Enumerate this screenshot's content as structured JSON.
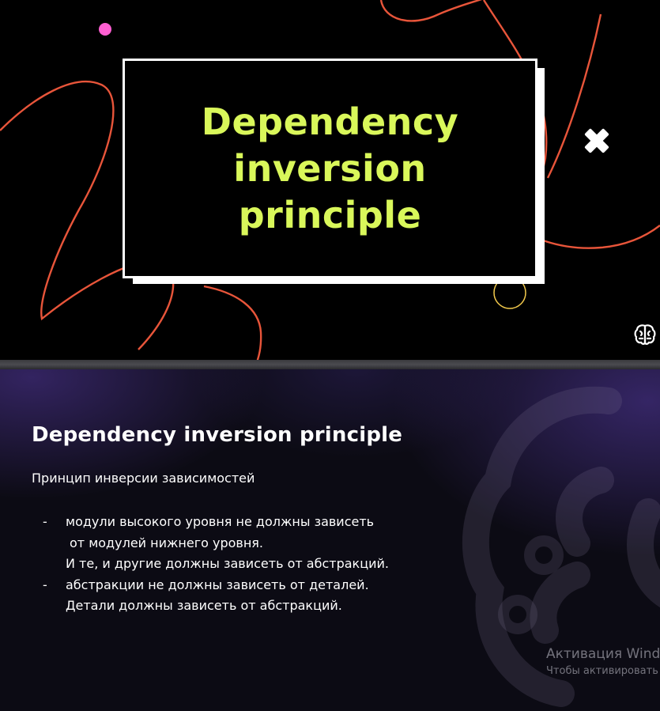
{
  "top_slide": {
    "title": "Dependency inversion principle",
    "accent_color": "#d9f75a",
    "line_color": "#e8553a",
    "dot_color": "#ff5fd2",
    "ring_color": "#f2c94c",
    "icons": [
      "brain-icon",
      "cross-icon"
    ]
  },
  "bottom_slide": {
    "title": "Dependency inversion principle",
    "subtitle": "Принцип инверсии зависимостей",
    "bullets": [
      {
        "dash": "-",
        "lines": [
          "модули высокого уровня не должны зависеть",
          " от модулей нижнего уровня.",
          "И те, и другие должны зависеть от абстракций."
        ]
      },
      {
        "dash": "-",
        "lines": [
          "абстракции не должны зависеть от деталей.",
          "Детали должны зависеть от абстракций."
        ]
      }
    ]
  },
  "activation": {
    "line1": "Активация Windows",
    "line2": "Чтобы активировать Windows, перейдите в раздел «Параметры»."
  }
}
